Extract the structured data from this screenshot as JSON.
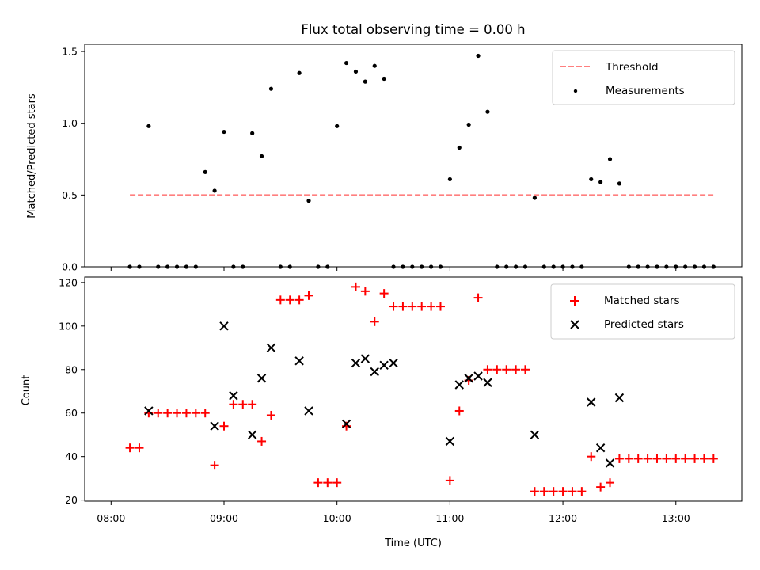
{
  "chart_data": [
    {
      "type": "scatter",
      "title": "Flux total observing time = 0.00 h",
      "ylabel": "Matched/Predicted stars",
      "xlabel": "",
      "ylim": [
        0,
        1.55
      ],
      "y_ticks": [
        "0.0",
        "0.5",
        "1.0",
        "1.5"
      ],
      "legend_placement": "top-right",
      "colors": {
        "threshold": "#ff7f7f",
        "measurements": "#000000"
      },
      "threshold": {
        "name": "Threshold",
        "value": 0.5,
        "x_start": "08:10",
        "x_end": "13:20"
      },
      "measurements": {
        "name": "Measurements",
        "x": [
          "08:10",
          "08:15",
          "08:20",
          "08:25",
          "08:30",
          "08:35",
          "08:40",
          "08:45",
          "08:50",
          "08:55",
          "09:00",
          "09:05",
          "09:10",
          "09:15",
          "09:20",
          "09:25",
          "09:30",
          "09:35",
          "09:40",
          "09:45",
          "09:50",
          "09:55",
          "10:00",
          "10:05",
          "10:10",
          "10:15",
          "10:20",
          "10:25",
          "10:30",
          "10:35",
          "10:40",
          "10:45",
          "10:50",
          "10:55",
          "11:00",
          "11:05",
          "11:10",
          "11:15",
          "11:20",
          "11:25",
          "11:30",
          "11:35",
          "11:40",
          "11:45",
          "11:50",
          "11:55",
          "12:00",
          "12:05",
          "12:10",
          "12:15",
          "12:20",
          "12:25",
          "12:30",
          "12:35",
          "12:40",
          "12:45",
          "12:50",
          "12:55",
          "13:00",
          "13:05",
          "13:10",
          "13:15",
          "13:20"
        ],
        "y": [
          0.0,
          0.0,
          0.98,
          0.0,
          0.0,
          0.0,
          0.0,
          0.0,
          0.66,
          0.53,
          0.94,
          0.0,
          0.0,
          0.93,
          0.77,
          1.24,
          0.0,
          0.0,
          1.35,
          0.46,
          0.0,
          0.0,
          0.98,
          1.42,
          1.36,
          1.29,
          1.4,
          1.31,
          0.0,
          0.0,
          0.0,
          0.0,
          0.0,
          0.0,
          0.61,
          0.83,
          0.99,
          1.47,
          1.08,
          0.0,
          0.0,
          0.0,
          0.0,
          0.48,
          0.0,
          0.0,
          0.0,
          0.0,
          0.0,
          0.61,
          0.59,
          0.75,
          0.58,
          0.0,
          0.0,
          0.0,
          0.0,
          0.0,
          0.0,
          0.0,
          0.0,
          0.0,
          0.0
        ]
      }
    },
    {
      "type": "scatter",
      "title": "",
      "xlabel": "Time (UTC)",
      "ylabel": "Count",
      "ylim": [
        19.5,
        122.5
      ],
      "y_ticks": [
        "20",
        "40",
        "60",
        "80",
        "100",
        "120"
      ],
      "x_ticks": [
        "08:00",
        "09:00",
        "10:00",
        "11:00",
        "12:00",
        "13:00"
      ],
      "legend_placement": "top-right",
      "colors": {
        "matched": "#ff0000",
        "predicted": "#000000"
      },
      "series": [
        {
          "name": "Matched stars",
          "marker": "+",
          "x": [
            "08:10",
            "08:15",
            "08:20",
            "08:25",
            "08:30",
            "08:35",
            "08:40",
            "08:45",
            "08:50",
            "08:55",
            "09:00",
            "09:05",
            "09:10",
            "09:15",
            "09:20",
            "09:25",
            "09:30",
            "09:35",
            "09:40",
            "09:45",
            "09:50",
            "09:55",
            "10:00",
            "10:05",
            "10:10",
            "10:15",
            "10:20",
            "10:25",
            "10:30",
            "10:35",
            "10:40",
            "10:45",
            "10:50",
            "10:55",
            "11:00",
            "11:05",
            "11:10",
            "11:15",
            "11:20",
            "11:25",
            "11:30",
            "11:35",
            "11:40",
            "11:45",
            "11:50",
            "11:55",
            "12:00",
            "12:05",
            "12:10",
            "12:15",
            "12:20",
            "12:25",
            "12:30",
            "12:35",
            "12:40",
            "12:45",
            "12:50",
            "12:55",
            "13:00",
            "13:05",
            "13:10",
            "13:15",
            "13:20"
          ],
          "values": [
            44,
            44,
            60,
            60,
            60,
            60,
            60,
            60,
            60,
            36,
            54,
            64,
            64,
            64,
            47,
            59,
            112,
            112,
            112,
            114,
            28,
            28,
            28,
            54,
            118,
            116,
            102,
            115,
            109,
            109,
            109,
            109,
            109,
            109,
            29,
            61,
            75,
            113,
            80,
            80,
            80,
            80,
            80,
            24,
            24,
            24,
            24,
            24,
            24,
            40,
            26,
            28,
            39,
            39,
            39,
            39,
            39,
            39,
            39,
            39,
            39,
            39,
            39
          ]
        },
        {
          "name": "Predicted stars",
          "marker": "x",
          "x": [
            "08:20",
            "08:55",
            "09:00",
            "09:05",
            "09:15",
            "09:20",
            "09:25",
            "09:40",
            "09:45",
            "10:05",
            "10:10",
            "10:15",
            "10:20",
            "10:25",
            "10:30",
            "11:00",
            "11:05",
            "11:10",
            "11:15",
            "11:20",
            "11:45",
            "12:15",
            "12:20",
            "12:25",
            "12:30"
          ],
          "values": [
            61,
            54,
            100,
            68,
            50,
            76,
            90,
            84,
            61,
            55,
            83,
            85,
            79,
            82,
            83,
            47,
            73,
            76,
            77,
            74,
            50,
            65,
            44,
            37,
            67
          ]
        }
      ]
    }
  ]
}
